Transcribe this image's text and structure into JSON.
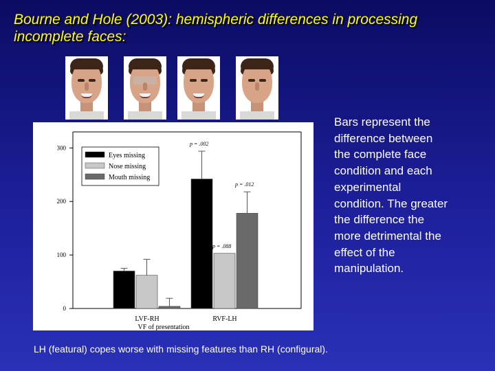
{
  "slide": {
    "title": "Bourne and Hole (2003): hemispheric differences in processing incomplete faces:",
    "description": "Bars represent the difference between the complete face condition and each experimental condition. The greater the difference the more detrimental the effect of the manipulation.",
    "footer": "LH (featural) copes worse with missing features than RH (configural).",
    "title_color": "#ffff00"
  },
  "faces": [
    {
      "variant": "complete"
    },
    {
      "variant": "eyes-missing"
    },
    {
      "variant": "nose-missing"
    },
    {
      "variant": "mouth-missing"
    }
  ],
  "chart_data": {
    "type": "bar",
    "categories": [
      "LVF-RH",
      "RVF-LH"
    ],
    "xlabel": "VF of presentation",
    "ylabel": "",
    "ylim": [
      0,
      330
    ],
    "yticks": [
      0,
      100,
      200,
      300
    ],
    "legend_position": "top-left",
    "series": [
      {
        "name": "Eyes missing",
        "color": "#000000",
        "values": [
          70,
          242
        ],
        "errors": [
          5,
          52
        ]
      },
      {
        "name": "Nose missing",
        "color": "#c8c8c8",
        "values": [
          62,
          103
        ],
        "errors": [
          30,
          0
        ]
      },
      {
        "name": "Mouth missing",
        "color": "#6a6a6a",
        "values": [
          4,
          178
        ],
        "errors": [
          15,
          40
        ]
      }
    ],
    "annotations": [
      {
        "text": "p = .002",
        "category": 1,
        "series": 0
      },
      {
        "text": "p = .088",
        "category": 1,
        "series": 1
      },
      {
        "text": "p = .012",
        "category": 1,
        "series": 2
      }
    ]
  }
}
